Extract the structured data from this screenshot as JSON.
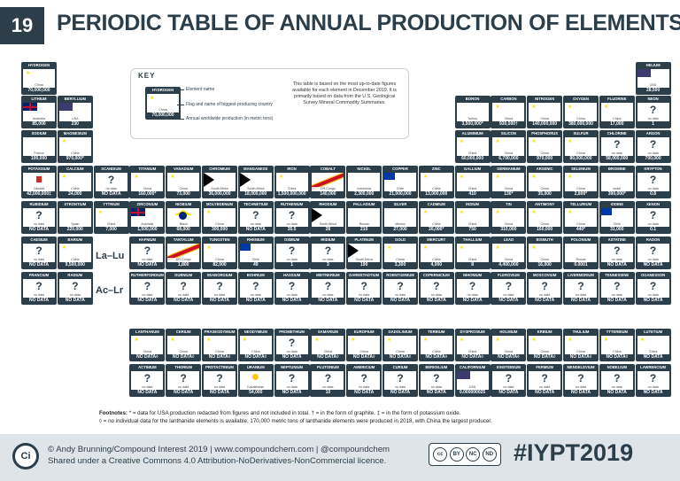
{
  "header": {
    "number": "19",
    "title": "PERIODIC TABLE OF ANNUAL PRODUCTION OF ELEMENTS"
  },
  "key": {
    "heading": "KEY",
    "sample": {
      "name": "HYDROGEN",
      "country": "China",
      "value": "70,000,000"
    },
    "label_name": "Element name",
    "label_flag": "Flag and name of biggest-producing country",
    "label_prod": "Annual worldwide production (in metric tons)",
    "note": "This table is based on the most up-to-date figures available for each element in December 2019. It is primarily based on data from the U.S. Geological Survey Mineral Commodity Summaries."
  },
  "series_labels": {
    "lanthanides": "La–Lu",
    "actinides": "Ac–Lr"
  },
  "elements": [
    {
      "name": "HYDROGEN",
      "country": "China",
      "value": "70,000,000",
      "flag": "china",
      "col": 1,
      "row": 1
    },
    {
      "name": "HELIUM",
      "country": "USA",
      "value": "28,500",
      "flag": "usa",
      "col": 18,
      "row": 1
    },
    {
      "name": "LITHIUM",
      "country": "Australia",
      "value": "85,000",
      "flag": "aus",
      "col": 1,
      "row": 2
    },
    {
      "name": "BERYLLIUM",
      "country": "USA",
      "value": "230",
      "flag": "usa",
      "col": 2,
      "row": 2
    },
    {
      "name": "BORON",
      "country": "Turkey",
      "value": "3,500,000*",
      "flag": "turkey",
      "col": 13,
      "row": 2
    },
    {
      "name": "CARBON",
      "country": "China",
      "value": "930,000†",
      "flag": "china",
      "col": 14,
      "row": 2
    },
    {
      "name": "NITROGEN",
      "country": "China",
      "value": "140,000,000",
      "flag": "china",
      "col": 15,
      "row": 2
    },
    {
      "name": "OXYGEN",
      "country": "China",
      "value": "380,000,000",
      "flag": "china",
      "col": 16,
      "row": 2
    },
    {
      "name": "FLUORINE",
      "country": "China",
      "value": "17,000",
      "flag": "china",
      "col": 17,
      "row": 2
    },
    {
      "name": "NEON",
      "country": "no data",
      "value": "1",
      "flag": "none",
      "col": 18,
      "row": 2
    },
    {
      "name": "SODIUM",
      "country": "France",
      "value": "100,000",
      "flag": "france",
      "col": 1,
      "row": 3
    },
    {
      "name": "MAGNESIUM",
      "country": "China",
      "value": "970,000*",
      "flag": "china",
      "col": 2,
      "row": 3
    },
    {
      "name": "ALUMINIUM",
      "country": "China",
      "value": "60,000,000",
      "flag": "china",
      "col": 13,
      "row": 3
    },
    {
      "name": "SILICON",
      "country": "China",
      "value": "6,700,000",
      "flag": "china",
      "col": 14,
      "row": 3
    },
    {
      "name": "PHOSPHORUS",
      "country": "China",
      "value": "970,000",
      "flag": "china",
      "col": 15,
      "row": 3
    },
    {
      "name": "SULFUR",
      "country": "China",
      "value": "80,000,000",
      "flag": "china",
      "col": 16,
      "row": 3
    },
    {
      "name": "CHLORINE",
      "country": "no data",
      "value": "58,000,000",
      "flag": "none",
      "col": 17,
      "row": 3
    },
    {
      "name": "ARGON",
      "country": "no data",
      "value": "700,000",
      "flag": "none",
      "col": 18,
      "row": 3
    },
    {
      "name": "POTASSIUM",
      "country": "Canada",
      "value": "42,000,000‡",
      "flag": "canada",
      "col": 1,
      "row": 4
    },
    {
      "name": "CALCIUM",
      "country": "China",
      "value": "24,000",
      "flag": "china",
      "col": 2,
      "row": 4
    },
    {
      "name": "SCANDIUM",
      "country": "no data",
      "value": "NO DATA",
      "flag": "none",
      "col": 3,
      "row": 4
    },
    {
      "name": "TITANIUM",
      "country": "China",
      "value": "160,000*",
      "flag": "china",
      "col": 4,
      "row": 4
    },
    {
      "name": "VANADIUM",
      "country": "China",
      "value": "73,000",
      "flag": "china",
      "col": 5,
      "row": 4
    },
    {
      "name": "CHROMIUM",
      "country": "South Africa",
      "value": "36,000,000",
      "flag": "safrica",
      "col": 6,
      "row": 4
    },
    {
      "name": "MANGANESE",
      "country": "South Africa",
      "value": "18,000,000",
      "flag": "safrica",
      "col": 7,
      "row": 4
    },
    {
      "name": "IRON",
      "country": "China",
      "value": "1,500,000,000",
      "flag": "china",
      "col": 8,
      "row": 4
    },
    {
      "name": "COBALT",
      "country": "DR Congo",
      "value": "140,000",
      "flag": "drc",
      "col": 9,
      "row": 4
    },
    {
      "name": "NICKEL",
      "country": "Indonesia",
      "value": "2,300,000",
      "flag": "indonesia",
      "col": 10,
      "row": 4
    },
    {
      "name": "COPPER",
      "country": "Chile",
      "value": "21,000,000",
      "flag": "chile",
      "col": 11,
      "row": 4
    },
    {
      "name": "ZINC",
      "country": "China",
      "value": "13,000,000",
      "flag": "china",
      "col": 12,
      "row": 4
    },
    {
      "name": "GALLIUM",
      "country": "China",
      "value": "410",
      "flag": "china",
      "col": 13,
      "row": 4
    },
    {
      "name": "GERMANIUM",
      "country": "China",
      "value": "130*",
      "flag": "china",
      "col": 14,
      "row": 4
    },
    {
      "name": "ARSENIC",
      "country": "China",
      "value": "35,000",
      "flag": "china",
      "col": 15,
      "row": 4
    },
    {
      "name": "SELENIUM",
      "country": "China",
      "value": "2,800*",
      "flag": "china",
      "col": 16,
      "row": 4
    },
    {
      "name": "BROMINE",
      "country": "Israel",
      "value": "390,000*",
      "flag": "israel",
      "col": 17,
      "row": 4
    },
    {
      "name": "KRYPTON",
      "country": "no data",
      "value": "0.8",
      "flag": "none",
      "col": 18,
      "row": 4
    },
    {
      "name": "RUBIDIUM",
      "country": "no data",
      "value": "NO DATA",
      "flag": "none",
      "col": 1,
      "row": 5
    },
    {
      "name": "STRONTIUM",
      "country": "Spain",
      "value": "220,000",
      "flag": "spain",
      "col": 2,
      "row": 5
    },
    {
      "name": "YTTRIUM",
      "country": "China",
      "value": "7,000",
      "flag": "china",
      "col": 3,
      "row": 5
    },
    {
      "name": "ZIRCONIUM",
      "country": "Australia",
      "value": "1,500,000",
      "flag": "aus",
      "col": 4,
      "row": 5
    },
    {
      "name": "NIOBIUM",
      "country": "Brazil",
      "value": "68,000",
      "flag": "brazil",
      "col": 5,
      "row": 5
    },
    {
      "name": "MOLYBDENUM",
      "country": "China",
      "value": "300,000",
      "flag": "china",
      "col": 6,
      "row": 5
    },
    {
      "name": "TECHNETIUM",
      "country": "no data",
      "value": "NO DATA",
      "flag": "none",
      "col": 7,
      "row": 5
    },
    {
      "name": "RUTHENIUM",
      "country": "no data",
      "value": "35.5",
      "flag": "none",
      "col": 8,
      "row": 5
    },
    {
      "name": "RHODIUM",
      "country": "South Africa",
      "value": "28",
      "flag": "safrica",
      "col": 9,
      "row": 5
    },
    {
      "name": "PALLADIUM",
      "country": "Russia",
      "value": "210",
      "flag": "russia",
      "col": 10,
      "row": 5
    },
    {
      "name": "SILVER",
      "country": "Mexico",
      "value": "27,000",
      "flag": "mexico",
      "col": 11,
      "row": 5
    },
    {
      "name": "CADMIUM",
      "country": "China",
      "value": "26,000*",
      "flag": "china",
      "col": 12,
      "row": 5
    },
    {
      "name": "INDIUM",
      "country": "China",
      "value": "750",
      "flag": "china",
      "col": 13,
      "row": 5
    },
    {
      "name": "TIN",
      "country": "China",
      "value": "310,000",
      "flag": "china",
      "col": 14,
      "row": 5
    },
    {
      "name": "ANTIMONY",
      "country": "China",
      "value": "160,000",
      "flag": "china",
      "col": 15,
      "row": 5
    },
    {
      "name": "TELLURIUM",
      "country": "China",
      "value": "440*",
      "flag": "china",
      "col": 16,
      "row": 5
    },
    {
      "name": "IODINE",
      "country": "Chile",
      "value": "31,000",
      "flag": "chile",
      "col": 17,
      "row": 5
    },
    {
      "name": "XENON",
      "country": "no data",
      "value": "0.1",
      "flag": "none",
      "col": 18,
      "row": 5
    },
    {
      "name": "CAESIUM",
      "country": "no data",
      "value": "NO DATA",
      "flag": "none",
      "col": 1,
      "row": 6
    },
    {
      "name": "BARIUM",
      "country": "China",
      "value": "9,500,000",
      "flag": "china",
      "col": 2,
      "row": 6
    },
    {
      "name": "HAFNIUM",
      "country": "no data",
      "value": "NO DATA",
      "flag": "none",
      "col": 4,
      "row": 6
    },
    {
      "name": "TANTALUM",
      "country": "DR Congo",
      "value": "1,800",
      "flag": "drc",
      "col": 5,
      "row": 6
    },
    {
      "name": "TUNGSTEN",
      "country": "China",
      "value": "82,000",
      "flag": "china",
      "col": 6,
      "row": 6
    },
    {
      "name": "RHENIUM",
      "country": "Chile",
      "value": "49",
      "flag": "chile",
      "col": 7,
      "row": 6
    },
    {
      "name": "OSMIUM",
      "country": "no data",
      "value": "1",
      "flag": "none",
      "col": 8,
      "row": 6
    },
    {
      "name": "IRIDIUM",
      "country": "no data",
      "value": "3",
      "flag": "none",
      "col": 9,
      "row": 6
    },
    {
      "name": "PLATINUM",
      "country": "South Africa",
      "value": "190",
      "flag": "safrica",
      "col": 10,
      "row": 6
    },
    {
      "name": "GOLD",
      "country": "China",
      "value": "3,300",
      "flag": "china",
      "col": 11,
      "row": 6
    },
    {
      "name": "MERCURY",
      "country": "China",
      "value": "4,000",
      "flag": "china",
      "col": 12,
      "row": 6
    },
    {
      "name": "THALLIUM",
      "country": "China",
      "value": "8",
      "flag": "china",
      "col": 13,
      "row": 6
    },
    {
      "name": "LEAD",
      "country": "China",
      "value": "4,400,000",
      "flag": "china",
      "col": 14,
      "row": 6
    },
    {
      "name": "BISMUTH",
      "country": "China",
      "value": "16,000",
      "flag": "china",
      "col": 15,
      "row": 6
    },
    {
      "name": "POLONIUM",
      "country": "Russia",
      "value": "0.0001",
      "flag": "russia",
      "col": 16,
      "row": 6
    },
    {
      "name": "ASTATINE",
      "country": "no data",
      "value": "NO DATA",
      "flag": "none",
      "col": 17,
      "row": 6
    },
    {
      "name": "RADON",
      "country": "no data",
      "value": "NO DATA",
      "flag": "none",
      "col": 18,
      "row": 6
    },
    {
      "name": "FRANCIUM",
      "country": "no data",
      "value": "NO DATA",
      "flag": "none",
      "col": 1,
      "row": 7
    },
    {
      "name": "RADIUM",
      "country": "no data",
      "value": "NO DATA",
      "flag": "none",
      "col": 2,
      "row": 7
    },
    {
      "name": "RUTHERFORDIUM",
      "country": "no data",
      "value": "NO DATA",
      "flag": "none",
      "col": 4,
      "row": 7
    },
    {
      "name": "DUBNIUM",
      "country": "no data",
      "value": "NO DATA",
      "flag": "none",
      "col": 5,
      "row": 7
    },
    {
      "name": "SEABORGIUM",
      "country": "no data",
      "value": "NO DATA",
      "flag": "none",
      "col": 6,
      "row": 7
    },
    {
      "name": "BOHRIUM",
      "country": "no data",
      "value": "NO DATA",
      "flag": "none",
      "col": 7,
      "row": 7
    },
    {
      "name": "HASSIUM",
      "country": "no data",
      "value": "NO DATA",
      "flag": "none",
      "col": 8,
      "row": 7
    },
    {
      "name": "MEITNERIUM",
      "country": "no data",
      "value": "NO DATA",
      "flag": "none",
      "col": 9,
      "row": 7
    },
    {
      "name": "DARMSTADTIUM",
      "country": "no data",
      "value": "NO DATA",
      "flag": "none",
      "col": 10,
      "row": 7
    },
    {
      "name": "ROENTGENIUM",
      "country": "no data",
      "value": "NO DATA",
      "flag": "none",
      "col": 11,
      "row": 7
    },
    {
      "name": "COPERNICIUM",
      "country": "no data",
      "value": "NO DATA",
      "flag": "none",
      "col": 12,
      "row": 7
    },
    {
      "name": "NIHONIUM",
      "country": "no data",
      "value": "NO DATA",
      "flag": "none",
      "col": 13,
      "row": 7
    },
    {
      "name": "FLEROVIUM",
      "country": "no data",
      "value": "NO DATA",
      "flag": "none",
      "col": 14,
      "row": 7
    },
    {
      "name": "MOSCOVIUM",
      "country": "no data",
      "value": "NO DATA",
      "flag": "none",
      "col": 15,
      "row": 7
    },
    {
      "name": "LIVERMORIUM",
      "country": "no data",
      "value": "NO DATA",
      "flag": "none",
      "col": 16,
      "row": 7
    },
    {
      "name": "TENNESSINE",
      "country": "no data",
      "value": "NO DATA",
      "flag": "none",
      "col": 17,
      "row": 7
    },
    {
      "name": "OGANESSON",
      "country": "no data",
      "value": "NO DATA",
      "flag": "none",
      "col": 18,
      "row": 7
    },
    {
      "name": "LANTHANUM",
      "country": "China",
      "value": "NO DATA◊",
      "flag": "china",
      "col": 4,
      "row": 8
    },
    {
      "name": "CERIUM",
      "country": "China",
      "value": "NO DATA◊",
      "flag": "china",
      "col": 5,
      "row": 8
    },
    {
      "name": "PRASEODYMIUM",
      "country": "China",
      "value": "NO DATA◊",
      "flag": "china",
      "col": 6,
      "row": 8
    },
    {
      "name": "NEODYMIUM",
      "country": "China",
      "value": "NO DATA◊",
      "flag": "china",
      "col": 7,
      "row": 8
    },
    {
      "name": "PROMETHIUM",
      "country": "no data",
      "value": "NO DATA",
      "flag": "none",
      "col": 8,
      "row": 8
    },
    {
      "name": "SAMARIUM",
      "country": "China",
      "value": "NO DATA◊",
      "flag": "china",
      "col": 9,
      "row": 8
    },
    {
      "name": "EUROPIUM",
      "country": "China",
      "value": "NO DATA◊",
      "flag": "china",
      "col": 10,
      "row": 8
    },
    {
      "name": "GADOLINIUM",
      "country": "China",
      "value": "NO DATA◊",
      "flag": "china",
      "col": 11,
      "row": 8
    },
    {
      "name": "TERBIUM",
      "country": "China",
      "value": "NO DATA◊",
      "flag": "china",
      "col": 12,
      "row": 8
    },
    {
      "name": "DYSPROSIUM",
      "country": "China",
      "value": "NO DATA◊",
      "flag": "china",
      "col": 13,
      "row": 8
    },
    {
      "name": "HOLMIUM",
      "country": "China",
      "value": "NO DATA◊",
      "flag": "china",
      "col": 14,
      "row": 8
    },
    {
      "name": "ERBIUM",
      "country": "China",
      "value": "NO DATA◊",
      "flag": "china",
      "col": 15,
      "row": 8
    },
    {
      "name": "THULIUM",
      "country": "China",
      "value": "NO DATA◊",
      "flag": "china",
      "col": 16,
      "row": 8
    },
    {
      "name": "YTTERBIUM",
      "country": "China",
      "value": "NO DATA◊",
      "flag": "china",
      "col": 17,
      "row": 8
    },
    {
      "name": "LUTETIUM",
      "country": "China",
      "value": "NO DATA",
      "flag": "china",
      "col": 18,
      "row": 8
    },
    {
      "name": "ACTINIUM",
      "country": "no data",
      "value": "NO DATA",
      "flag": "none",
      "col": 4,
      "row": 9
    },
    {
      "name": "THORIUM",
      "country": "no data",
      "value": "NO DATA",
      "flag": "none",
      "col": 5,
      "row": 9
    },
    {
      "name": "PROTACTINIUM",
      "country": "no data",
      "value": "NO DATA",
      "flag": "none",
      "col": 6,
      "row": 9
    },
    {
      "name": "URANIUM",
      "country": "Kazakhstan",
      "value": "54,000",
      "flag": "kazakh",
      "col": 7,
      "row": 9
    },
    {
      "name": "NEPTUNIUM",
      "country": "no data",
      "value": "NO DATA",
      "flag": "none",
      "col": 8,
      "row": 9
    },
    {
      "name": "PLUTONIUM",
      "country": "no data",
      "value": "10",
      "flag": "none",
      "col": 9,
      "row": 9
    },
    {
      "name": "AMERICIUM",
      "country": "no data",
      "value": "NO DATA",
      "flag": "none",
      "col": 10,
      "row": 9
    },
    {
      "name": "CURIUM",
      "country": "no data",
      "value": "NO DATA",
      "flag": "none",
      "col": 11,
      "row": 9
    },
    {
      "name": "BERKELIUM",
      "country": "no data",
      "value": "NO DATA",
      "flag": "none",
      "col": 12,
      "row": 9
    },
    {
      "name": "CALIFORNIUM",
      "country": "USA",
      "value": "0.000000025",
      "flag": "usa",
      "col": 13,
      "row": 9
    },
    {
      "name": "EINSTEINIUM",
      "country": "no data",
      "value": "NO DATA",
      "flag": "none",
      "col": 14,
      "row": 9
    },
    {
      "name": "FERMIUM",
      "country": "no data",
      "value": "NO DATA",
      "flag": "none",
      "col": 15,
      "row": 9
    },
    {
      "name": "MENDELEVIUM",
      "country": "no data",
      "value": "NO DATA",
      "flag": "none",
      "col": 16,
      "row": 9
    },
    {
      "name": "NOBELIUM",
      "country": "no data",
      "value": "NO DATA",
      "flag": "none",
      "col": 17,
      "row": 9
    },
    {
      "name": "LAWRENCIUM",
      "country": "no data",
      "value": "NO DATA",
      "flag": "none",
      "col": 18,
      "row": 9
    }
  ],
  "footnotes": {
    "heading": "Footnotes:",
    "line1": " * = data for USA production redacted from figures and not included in total.  † = in the form of graphite.  ‡ = in the form of potassium oxide.",
    "line2": "◊ = no individual data for the lanthanide elements is available; 170,000 metric tons of lanthanide elements were produced in 2018, with China the largest producer."
  },
  "footer": {
    "logo": "Ci",
    "credit1": "© Andy Brunning/Compound Interest 2019 | www.compoundchem.com | @compoundchem",
    "credit2": "Shared under a Creative Commons 4.0 Attribution-NoDerivatives-NonCommercial licence.",
    "cc_items": [
      "cc",
      "BY",
      "NC",
      "ND"
    ],
    "cc_sub": "BY NC ND",
    "hashtag": "#IYPT2019"
  }
}
